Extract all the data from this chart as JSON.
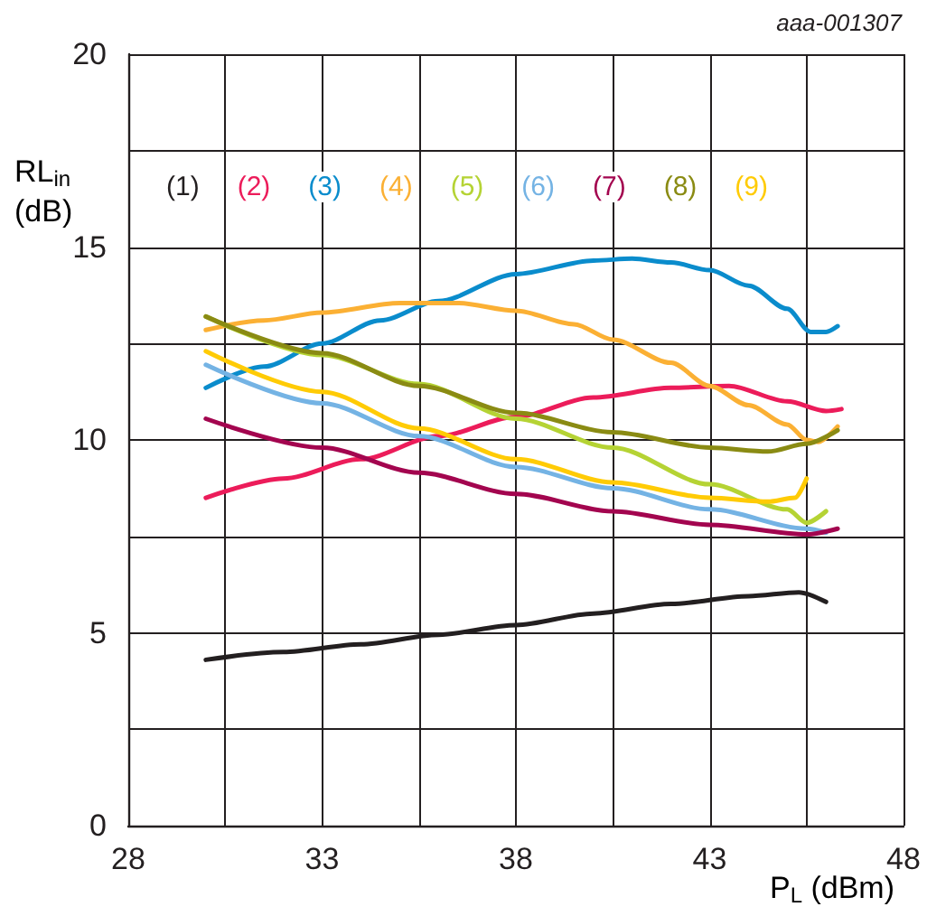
{
  "chart_data": {
    "type": "line",
    "xlabel": "P$_{L}$ (dBm)",
    "ylabel": "RL$_{in}$ (dB)",
    "annotations": [
      "aaa-001307"
    ],
    "xlim": [
      28,
      48
    ],
    "xticks": [
      28,
      {
        "value": 30.5,
        "label": null
      },
      33,
      {
        "value": 35.5,
        "label": null
      },
      38,
      {
        "value": 40.5,
        "label": null
      },
      43,
      {
        "value": 45.5,
        "label": null
      },
      48
    ],
    "ylim": [
      0,
      20
    ],
    "yticks": [
      0,
      {
        "value": 2.5,
        "label": null
      },
      5,
      {
        "value": 7.5,
        "label": null
      },
      10,
      {
        "value": 12.5,
        "label": null
      },
      15,
      {
        "value": 17.5,
        "label": null
      },
      20
    ],
    "grid": true,
    "legend": "top left",
    "series": [
      {
        "name": "(1)",
        "color": "#231f20",
        "x": [
          30,
          32,
          34,
          36,
          38,
          40,
          42,
          44,
          45.3,
          46
        ],
        "values": [
          4.3,
          4.5,
          4.7,
          4.95,
          5.2,
          5.5,
          5.75,
          5.95,
          6.05,
          5.8
        ]
      },
      {
        "name": "(2)",
        "color": "#ec1c5a",
        "x": [
          30,
          32,
          34,
          36,
          38,
          40,
          42,
          43.5,
          45,
          46,
          46.4
        ],
        "values": [
          8.5,
          9.0,
          9.5,
          10.1,
          10.6,
          11.1,
          11.35,
          11.4,
          11.0,
          10.75,
          10.8
        ]
      },
      {
        "name": "(3)",
        "color": "#0a8ccc",
        "x": [
          30,
          31.5,
          33,
          34.5,
          36,
          38,
          40,
          41,
          42,
          43,
          44,
          45,
          45.6,
          46,
          46.3
        ],
        "values": [
          11.35,
          11.9,
          12.5,
          13.1,
          13.6,
          14.3,
          14.65,
          14.7,
          14.6,
          14.4,
          14.0,
          13.4,
          12.8,
          12.8,
          12.95
        ]
      },
      {
        "name": "(4)",
        "color": "#fbb034",
        "x": [
          30,
          31.5,
          33,
          35,
          36.5,
          38,
          39.5,
          40.5,
          42,
          43,
          44,
          45,
          45.5,
          45.8,
          46.3
        ],
        "values": [
          12.85,
          13.1,
          13.3,
          13.55,
          13.55,
          13.35,
          13.0,
          12.6,
          12.0,
          11.4,
          10.9,
          10.4,
          10.0,
          9.95,
          10.35
        ]
      },
      {
        "name": "(5)",
        "color": "#b5d334",
        "x": [
          30,
          33,
          35.5,
          38,
          40.5,
          43,
          45,
          45.5,
          46
        ],
        "values": [
          13.2,
          12.2,
          11.45,
          10.55,
          9.8,
          8.85,
          8.2,
          7.85,
          8.15
        ]
      },
      {
        "name": "(6)",
        "color": "#74b3e4",
        "x": [
          30,
          33,
          35.5,
          38,
          40.5,
          43,
          45.5,
          46
        ],
        "values": [
          11.95,
          10.95,
          10.1,
          9.3,
          8.75,
          8.2,
          7.7,
          7.6
        ]
      },
      {
        "name": "(7)",
        "color": "#a3054f",
        "x": [
          30,
          33,
          35.5,
          38,
          40.5,
          43,
          45.5,
          46.3
        ],
        "values": [
          10.55,
          9.8,
          9.15,
          8.6,
          8.15,
          7.8,
          7.55,
          7.7
        ]
      },
      {
        "name": "(8)",
        "color": "#8a8b13",
        "x": [
          30,
          33,
          35.5,
          38,
          40.5,
          43,
          44.5,
          45.5,
          46.3
        ],
        "values": [
          13.2,
          12.25,
          11.4,
          10.7,
          10.2,
          9.8,
          9.7,
          9.9,
          10.25
        ]
      },
      {
        "name": "(9)",
        "color": "#ffcb05",
        "x": [
          30,
          33,
          35.5,
          38,
          40.5,
          43,
          44.5,
          45.2,
          45.5
        ],
        "values": [
          12.3,
          11.25,
          10.3,
          9.5,
          8.9,
          8.5,
          8.4,
          8.5,
          9.0
        ]
      }
    ]
  }
}
